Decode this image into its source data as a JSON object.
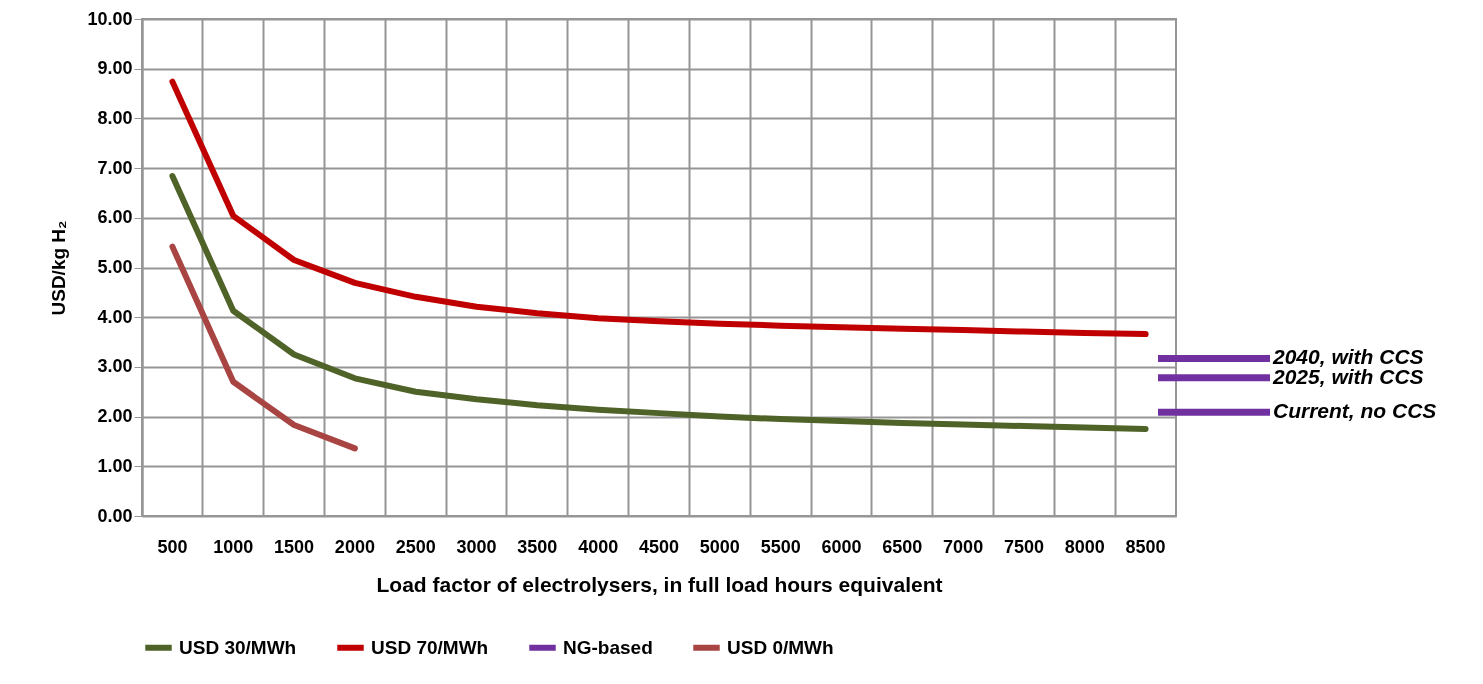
{
  "chart_data": {
    "type": "line",
    "xlabel": "Load factor of electrolysers, in full load hours equivalent",
    "ylabel": "USD/kg H₂",
    "categories": [
      "500",
      "1000",
      "1500",
      "2000",
      "2500",
      "3000",
      "3500",
      "4000",
      "4500",
      "5000",
      "5500",
      "6000",
      "6500",
      "7000",
      "7500",
      "8000",
      "8500"
    ],
    "series": [
      {
        "name": "USD 30/MWh",
        "color": "#4f6228",
        "values": [
          6.84,
          4.13,
          3.25,
          2.77,
          2.5,
          2.35,
          2.23,
          2.14,
          2.07,
          2.0,
          1.95,
          1.91,
          1.87,
          1.84,
          1.81,
          1.78,
          1.75
        ]
      },
      {
        "name": "USD 70/MWh",
        "color": "#c00000",
        "values": [
          8.74,
          6.04,
          5.15,
          4.69,
          4.41,
          4.21,
          4.08,
          3.98,
          3.92,
          3.87,
          3.83,
          3.8,
          3.77,
          3.74,
          3.71,
          3.68,
          3.66
        ]
      },
      {
        "name": "NG-based",
        "color": "#7030a0",
        "values": [
          null,
          null,
          null,
          null,
          null,
          null,
          null,
          null,
          null,
          null,
          null,
          null,
          null,
          null,
          null,
          null,
          null
        ]
      },
      {
        "name": "USD 0/MWh",
        "color": "#a84542",
        "values": [
          5.42,
          2.7,
          1.83,
          1.36,
          null,
          null,
          null,
          null,
          null,
          null,
          null,
          null,
          null,
          null,
          null,
          null,
          null
        ]
      }
    ],
    "ref_lines": [
      {
        "axis": "y",
        "value": 3.17,
        "label": "2040, with CCS",
        "color": "#7030a0"
      },
      {
        "axis": "y",
        "value": 2.78,
        "label": "2025, with CCS",
        "color": "#7030a0"
      },
      {
        "axis": "y",
        "value": 2.09,
        "label": "Current, no CCS",
        "color": "#7030a0"
      }
    ],
    "ylim": [
      0,
      10
    ],
    "yticks": [
      {
        "value": 0,
        "label": "0.00"
      },
      {
        "value": 1,
        "label": "1.00"
      },
      {
        "value": 2,
        "label": "2.00"
      },
      {
        "value": 3,
        "label": "3.00"
      },
      {
        "value": 4,
        "label": "4.00"
      },
      {
        "value": 5,
        "label": "5.00"
      },
      {
        "value": 6,
        "label": "6.00"
      },
      {
        "value": 7,
        "label": "7.00"
      },
      {
        "value": 8,
        "label": "8.00"
      },
      {
        "value": 9,
        "label": "9.00"
      },
      {
        "value": 10,
        "label": "10.00"
      }
    ],
    "grid": true,
    "legend": "bottom",
    "marker": "none",
    "line_style": "solid"
  }
}
